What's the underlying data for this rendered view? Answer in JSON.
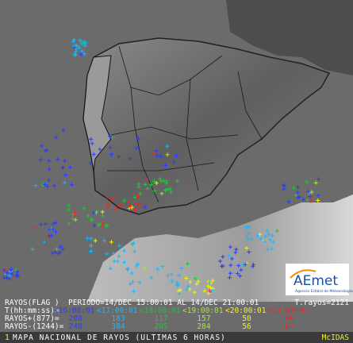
{
  "header": {
    "label": "RAYOS(FLAG )",
    "period": "PERIODO=14/DEC 15:00:01 AL 14/DEC 21:00:01",
    "total": "T.rayos=2121"
  },
  "legend": {
    "time_label": "T(hh:mm:ss)=",
    "times": [
      "<16:00:01",
      "<17:00:01",
      "<18:00:01",
      "<19:00:01",
      "<20:00:01",
      "<21:00:01"
    ],
    "colors": [
      "#2a3cff",
      "#16b8ff",
      "#19c93a",
      "#a8e83a",
      "#f2f21a",
      "#ff2020"
    ],
    "positive_label": "RAYOS+(877)=",
    "positive": [
      "280",
      "183",
      "117",
      "157",
      "50",
      "90"
    ],
    "negative_label": "RAYOS-(1244)=",
    "negative": [
      "248",
      "384",
      "205",
      "284",
      "56",
      "67"
    ]
  },
  "footer": {
    "number": "1",
    "title": "MAPA NACIONAL DE RAYOS (ULTIMAS 6 HORAS)",
    "source": "McIDAS"
  },
  "logo": {
    "name": "AEmet",
    "subtitle": "Agencia Estatal de Meteorología"
  }
}
